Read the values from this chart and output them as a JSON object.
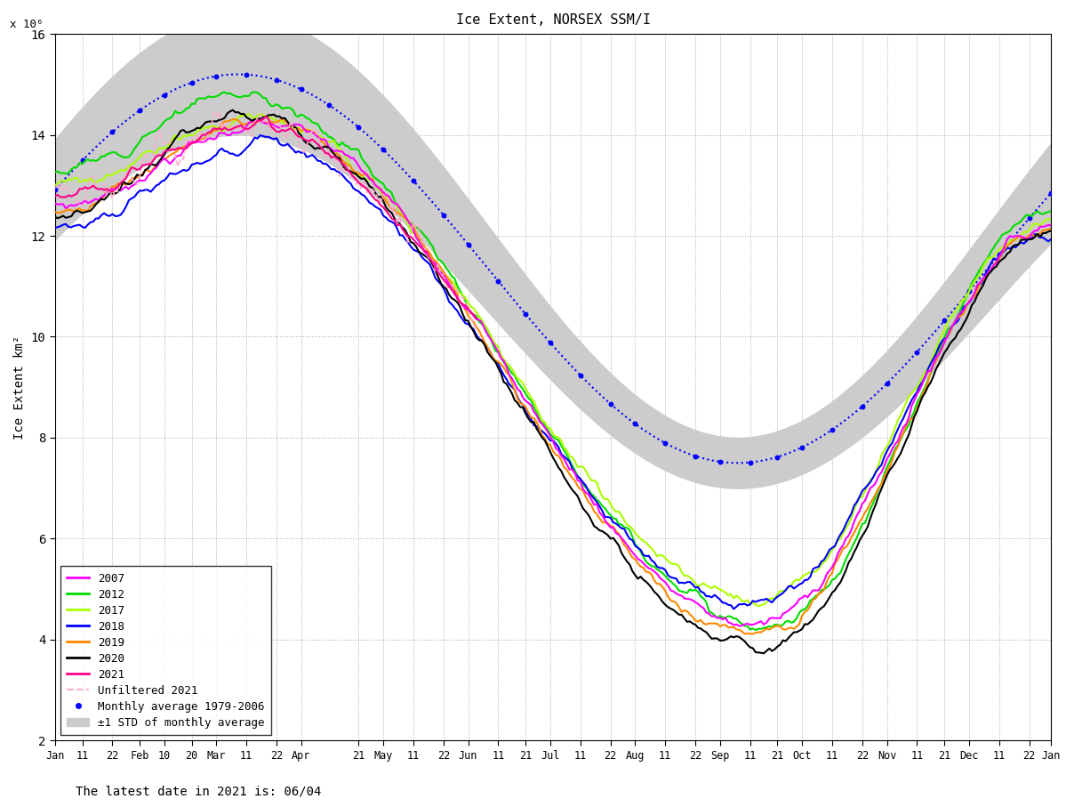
{
  "title": "Ice Extent, NORSEX SSM/I",
  "ylabel": "Ice Extent km²",
  "xlabel_note": "The latest date in 2021 is: 06/04",
  "y_scale_label": "x 10⁶",
  "ylim": [
    2000000,
    16000000
  ],
  "ytick_labels": [
    "2",
    "4",
    "6",
    "8",
    "10",
    "12",
    "14",
    "16"
  ],
  "background_color": "#ffffff",
  "grid_color": "#aaaaaa",
  "avg_color": "#0000ff",
  "std_color": "#cccccc",
  "unfiltered_color": "#ffaacc",
  "year_colors": {
    "2007": "#ff00ff",
    "2012": "#00dd00",
    "2017": "#aaff00",
    "2018": "#0000ff",
    "2019": "#ff8800",
    "2020": "#000000",
    "2021": "#ff0088"
  }
}
